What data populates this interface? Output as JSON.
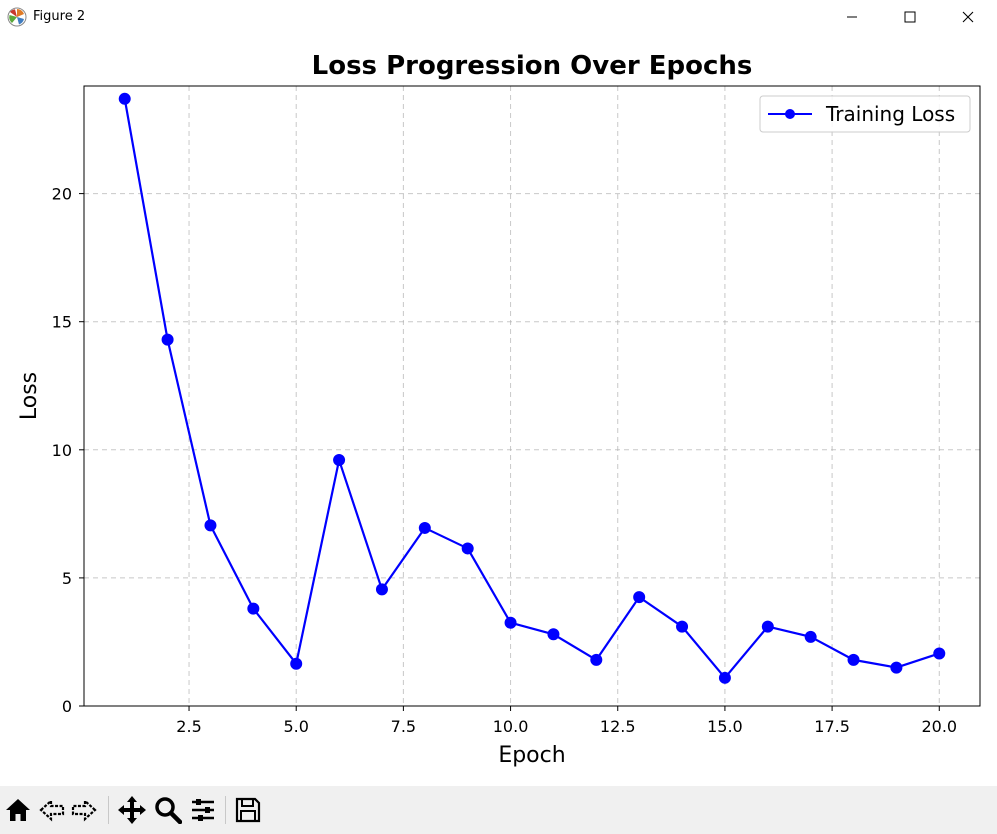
{
  "window": {
    "title": "Figure 2",
    "app_icon": "matplotlib-icon",
    "controls": [
      "minimize-icon",
      "maximize-icon",
      "close-icon"
    ]
  },
  "toolbar": {
    "buttons": [
      "home-icon",
      "back-icon",
      "forward-icon",
      "pan-icon",
      "zoom-icon",
      "configure-subplots-icon",
      "save-icon"
    ]
  },
  "chart_data": {
    "type": "line",
    "title": "Loss Progression Over Epochs",
    "xlabel": "Epoch",
    "ylabel": "Loss",
    "xlim": [
      0.05,
      20.95
    ],
    "ylim": [
      0,
      24.2
    ],
    "xticks": [
      2.5,
      5.0,
      7.5,
      10.0,
      12.5,
      15.0,
      17.5,
      20.0
    ],
    "xtick_labels": [
      "2.5",
      "5.0",
      "7.5",
      "10.0",
      "12.5",
      "15.0",
      "17.5",
      "20.0"
    ],
    "yticks": [
      0,
      5,
      10,
      15,
      20
    ],
    "ytick_labels": [
      "0",
      "5",
      "10",
      "15",
      "20"
    ],
    "grid": true,
    "legend_position": "top-right",
    "series": [
      {
        "name": "Training Loss",
        "color": "#0000ff",
        "marker": "circle",
        "x": [
          1,
          2,
          3,
          4,
          5,
          6,
          7,
          8,
          9,
          10,
          11,
          12,
          13,
          14,
          15,
          16,
          17,
          18,
          19,
          20
        ],
        "y": [
          23.7,
          14.3,
          7.05,
          3.8,
          1.65,
          9.6,
          4.55,
          6.95,
          6.15,
          3.25,
          2.8,
          1.8,
          4.25,
          3.1,
          1.1,
          3.1,
          2.7,
          1.8,
          1.5,
          2.05
        ]
      }
    ]
  }
}
